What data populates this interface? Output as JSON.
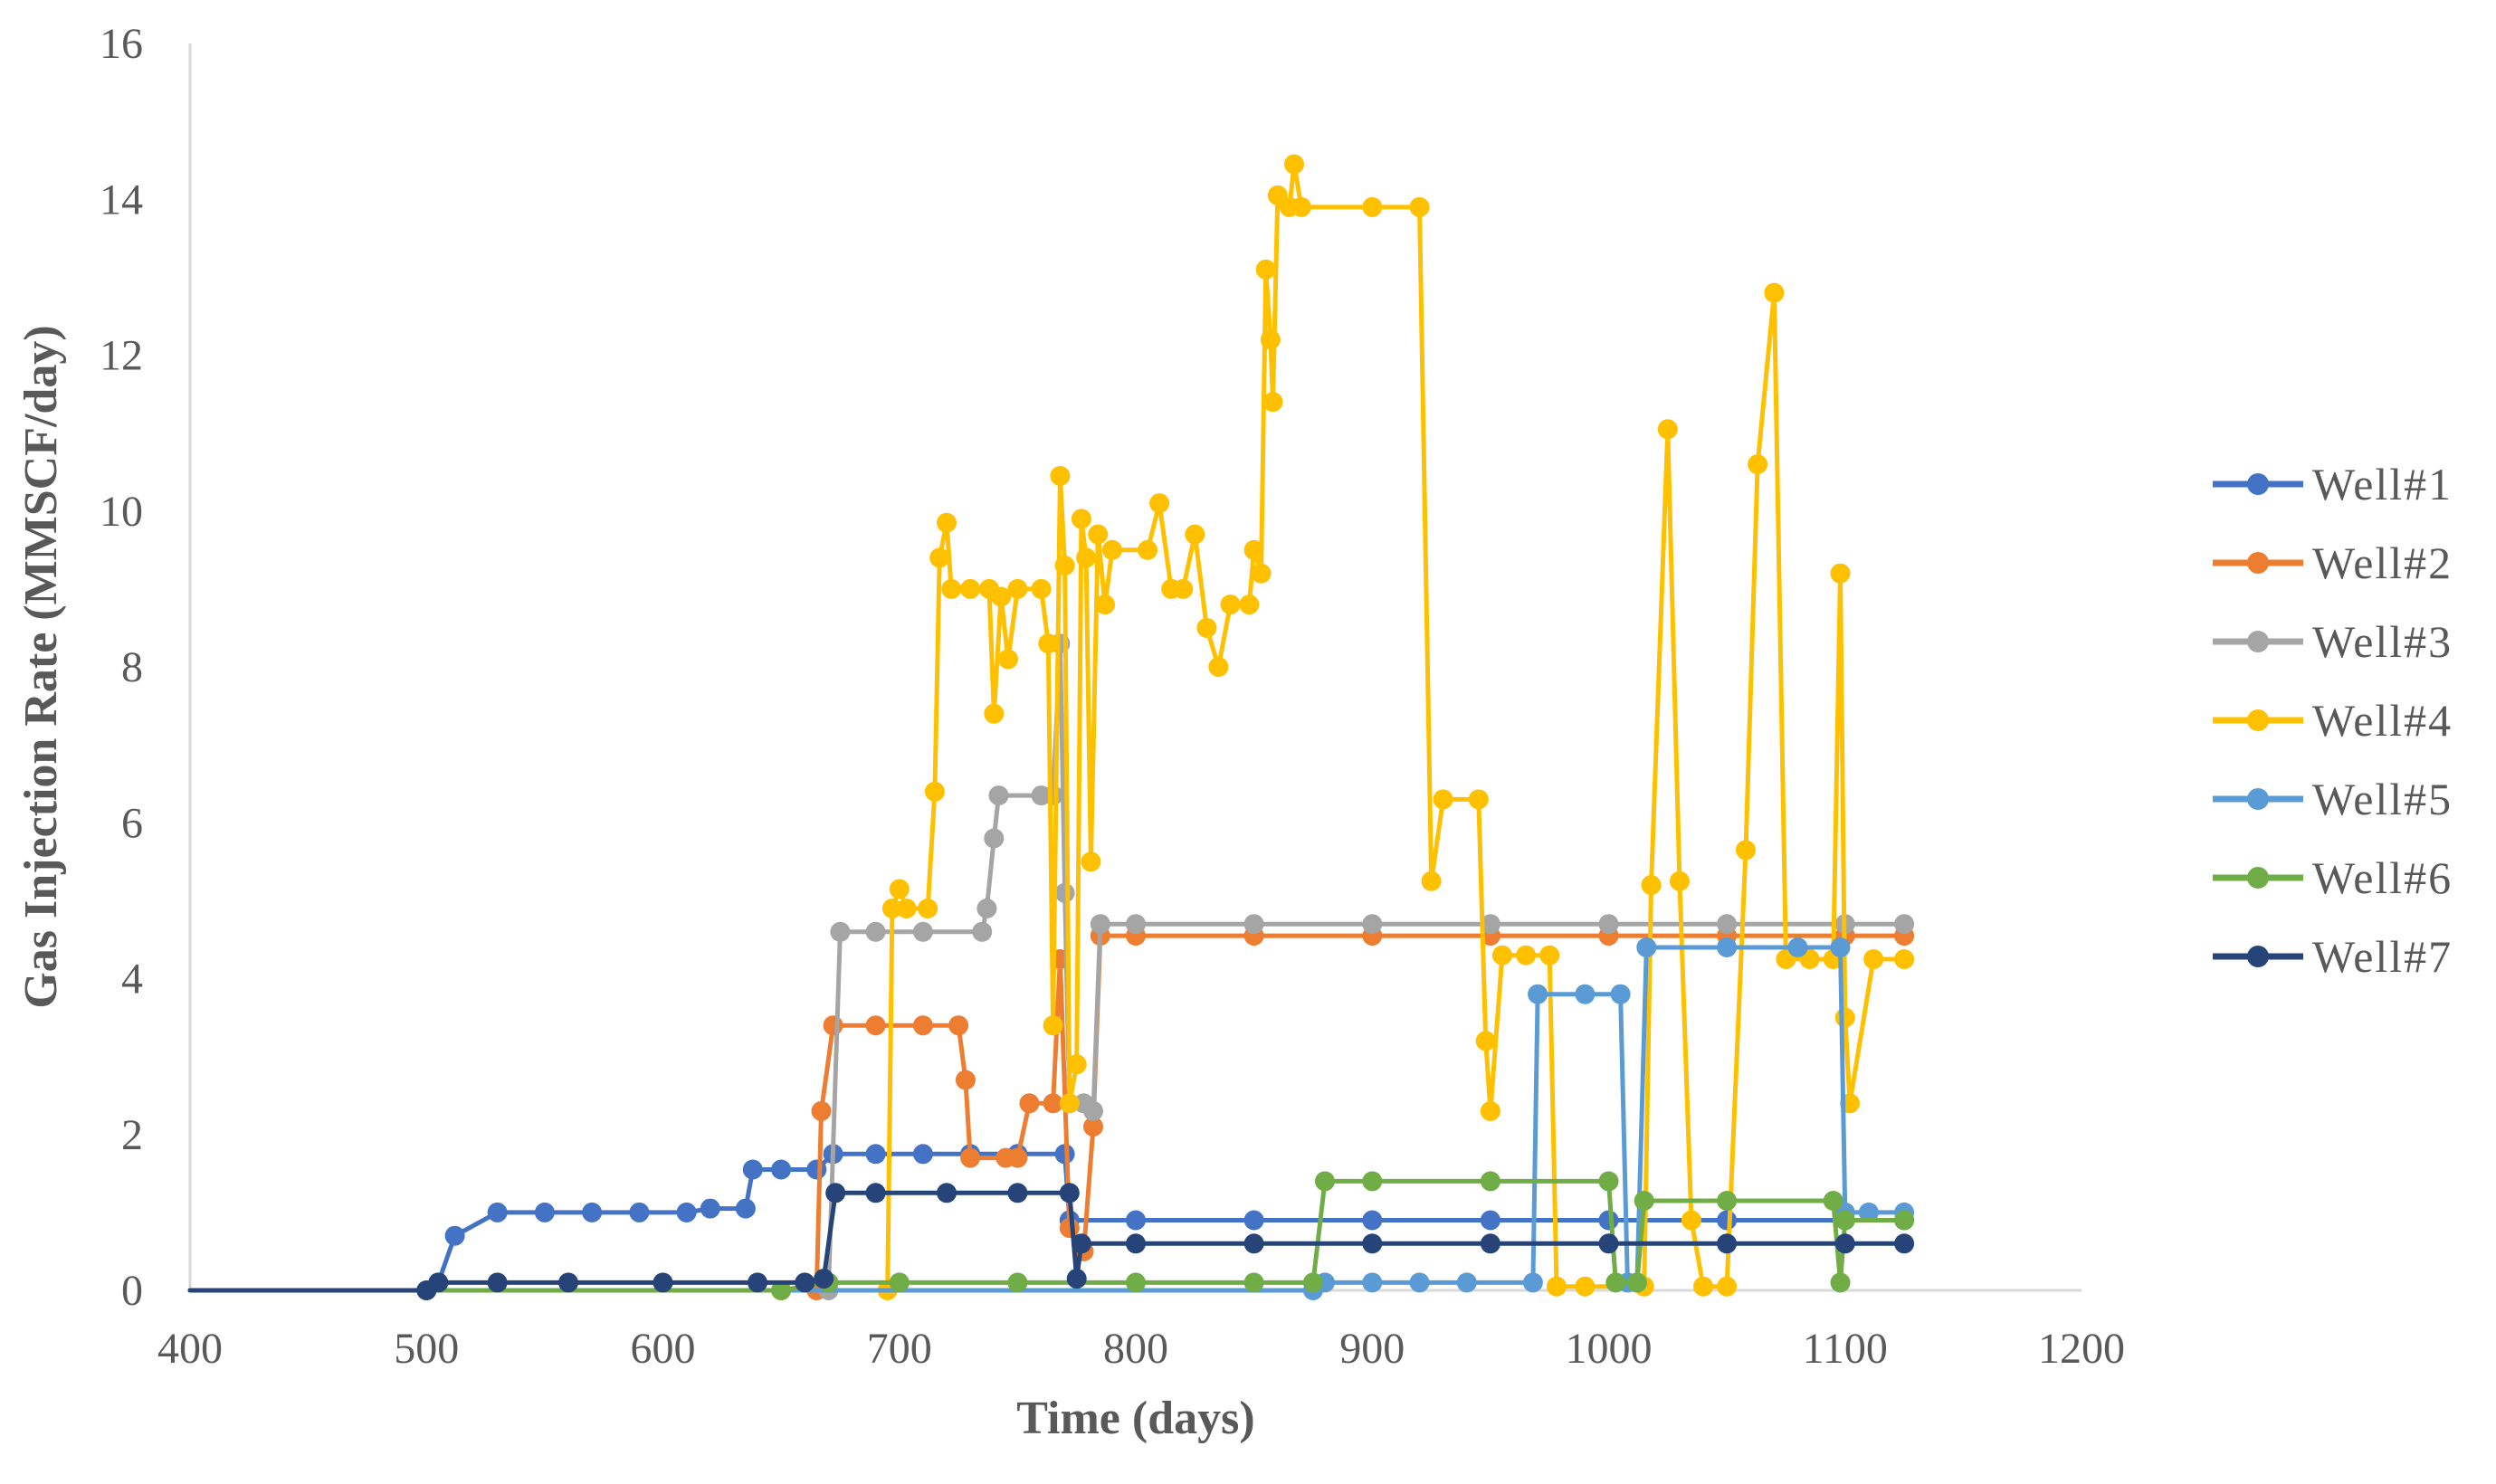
{
  "chart_data": {
    "type": "line",
    "title": "",
    "xlabel": "Time (days)",
    "ylabel": "Gas Injection Rate (MMSCF/day)",
    "xlim": [
      400,
      1200
    ],
    "ylim": [
      0,
      16
    ],
    "xticks": [
      400,
      500,
      600,
      700,
      800,
      900,
      1000,
      1100,
      1200
    ],
    "yticks": [
      0,
      2,
      4,
      6,
      8,
      10,
      12,
      14,
      16
    ],
    "grid": false,
    "legend_position": "right",
    "series": [
      {
        "name": "Well#1",
        "color": "#4472C4",
        "points": [
          [
            400,
            0
          ],
          [
            500,
            0
          ],
          [
            505,
            0.1
          ],
          [
            512,
            0.7
          ],
          [
            530,
            1.0
          ],
          [
            550,
            1.0
          ],
          [
            570,
            1.0
          ],
          [
            590,
            1.0
          ],
          [
            610,
            1.0
          ],
          [
            620,
            1.05
          ],
          [
            635,
            1.05
          ],
          [
            638,
            1.55
          ],
          [
            650,
            1.55
          ],
          [
            665,
            1.55
          ],
          [
            672,
            1.75
          ],
          [
            690,
            1.75
          ],
          [
            710,
            1.75
          ],
          [
            730,
            1.75
          ],
          [
            750,
            1.75
          ],
          [
            770,
            1.75
          ],
          [
            772,
            0.9
          ],
          [
            800,
            0.9
          ],
          [
            850,
            0.9
          ],
          [
            900,
            0.9
          ],
          [
            950,
            0.9
          ],
          [
            1000,
            0.9
          ],
          [
            1050,
            0.9
          ],
          [
            1100,
            0.9
          ],
          [
            1125,
            0.9
          ]
        ]
      },
      {
        "name": "Well#2",
        "color": "#ED7D31",
        "points": [
          [
            400,
            0
          ],
          [
            650,
            0
          ],
          [
            665,
            0
          ],
          [
            667,
            2.3
          ],
          [
            672,
            3.4
          ],
          [
            690,
            3.4
          ],
          [
            710,
            3.4
          ],
          [
            725,
            3.4
          ],
          [
            728,
            2.7
          ],
          [
            730,
            1.7
          ],
          [
            745,
            1.7
          ],
          [
            750,
            1.7
          ],
          [
            755,
            2.4
          ],
          [
            765,
            2.4
          ],
          [
            768,
            4.25
          ],
          [
            772,
            0.8
          ],
          [
            778,
            0.5
          ],
          [
            782,
            2.1
          ],
          [
            785,
            4.55
          ],
          [
            800,
            4.55
          ],
          [
            850,
            4.55
          ],
          [
            900,
            4.55
          ],
          [
            950,
            4.55
          ],
          [
            1000,
            4.55
          ],
          [
            1050,
            4.55
          ],
          [
            1100,
            4.55
          ],
          [
            1125,
            4.55
          ]
        ]
      },
      {
        "name": "Well#3",
        "color": "#A5A5A5",
        "points": [
          [
            400,
            0
          ],
          [
            670,
            0
          ],
          [
            675,
            4.6
          ],
          [
            690,
            4.6
          ],
          [
            710,
            4.6
          ],
          [
            735,
            4.6
          ],
          [
            737,
            4.9
          ],
          [
            740,
            5.8
          ],
          [
            742,
            6.35
          ],
          [
            760,
            6.35
          ],
          [
            765,
            6.35
          ],
          [
            768,
            8.3
          ],
          [
            770,
            5.1
          ],
          [
            772,
            2.4
          ],
          [
            778,
            2.4
          ],
          [
            782,
            2.3
          ],
          [
            785,
            4.7
          ],
          [
            800,
            4.7
          ],
          [
            850,
            4.7
          ],
          [
            900,
            4.7
          ],
          [
            950,
            4.7
          ],
          [
            1000,
            4.7
          ],
          [
            1050,
            4.7
          ],
          [
            1100,
            4.7
          ],
          [
            1125,
            4.7
          ]
        ]
      },
      {
        "name": "Well#4",
        "color": "#FFC000",
        "points": [
          [
            400,
            0
          ],
          [
            650,
            0
          ],
          [
            695,
            0
          ],
          [
            697,
            4.9
          ],
          [
            700,
            5.15
          ],
          [
            703,
            4.9
          ],
          [
            712,
            4.9
          ],
          [
            715,
            6.4
          ],
          [
            717,
            9.4
          ],
          [
            720,
            9.85
          ],
          [
            722,
            9.0
          ],
          [
            730,
            9.0
          ],
          [
            738,
            9.0
          ],
          [
            740,
            7.4
          ],
          [
            743,
            8.9
          ],
          [
            746,
            8.1
          ],
          [
            750,
            9.0
          ],
          [
            760,
            9.0
          ],
          [
            763,
            8.3
          ],
          [
            765,
            3.4
          ],
          [
            768,
            10.45
          ],
          [
            770,
            9.3
          ],
          [
            772,
            2.4
          ],
          [
            775,
            2.9
          ],
          [
            777,
            9.9
          ],
          [
            779,
            9.4
          ],
          [
            781,
            5.5
          ],
          [
            784,
            9.7
          ],
          [
            787,
            8.8
          ],
          [
            790,
            9.5
          ],
          [
            805,
            9.5
          ],
          [
            810,
            10.1
          ],
          [
            815,
            9.0
          ],
          [
            820,
            9.0
          ],
          [
            825,
            9.7
          ],
          [
            830,
            8.5
          ],
          [
            835,
            8.0
          ],
          [
            840,
            8.8
          ],
          [
            848,
            8.8
          ],
          [
            850,
            9.5
          ],
          [
            853,
            9.2
          ],
          [
            855,
            13.1
          ],
          [
            857,
            12.2
          ],
          [
            858,
            11.4
          ],
          [
            860,
            14.05
          ],
          [
            865,
            13.9
          ],
          [
            867,
            14.45
          ],
          [
            870,
            13.9
          ],
          [
            900,
            13.9
          ],
          [
            920,
            13.9
          ],
          [
            925,
            5.25
          ],
          [
            930,
            6.3
          ],
          [
            945,
            6.3
          ],
          [
            948,
            3.2
          ],
          [
            950,
            2.3
          ],
          [
            955,
            4.3
          ],
          [
            965,
            4.3
          ],
          [
            975,
            4.3
          ],
          [
            978,
            0.05
          ],
          [
            990,
            0.05
          ],
          [
            1015,
            0.05
          ],
          [
            1018,
            5.2
          ],
          [
            1025,
            11.05
          ],
          [
            1030,
            5.25
          ],
          [
            1035,
            0.9
          ],
          [
            1040,
            0.05
          ],
          [
            1050,
            0.05
          ],
          [
            1058,
            5.65
          ],
          [
            1063,
            10.6
          ],
          [
            1070,
            12.8
          ],
          [
            1075,
            4.25
          ],
          [
            1085,
            4.25
          ],
          [
            1095,
            4.25
          ],
          [
            1098,
            9.2
          ],
          [
            1100,
            3.5
          ],
          [
            1102,
            2.4
          ],
          [
            1112,
            4.25
          ],
          [
            1125,
            4.25
          ]
        ]
      },
      {
        "name": "Well#5",
        "color": "#5B9BD5",
        "points": [
          [
            400,
            0
          ],
          [
            875,
            0
          ],
          [
            880,
            0.1
          ],
          [
            900,
            0.1
          ],
          [
            920,
            0.1
          ],
          [
            940,
            0.1
          ],
          [
            968,
            0.1
          ],
          [
            970,
            3.8
          ],
          [
            990,
            3.8
          ],
          [
            1005,
            3.8
          ],
          [
            1008,
            0.1
          ],
          [
            1012,
            0.1
          ],
          [
            1016,
            4.4
          ],
          [
            1050,
            4.4
          ],
          [
            1080,
            4.4
          ],
          [
            1098,
            4.4
          ],
          [
            1100,
            1.0
          ],
          [
            1110,
            1.0
          ],
          [
            1125,
            1.0
          ]
        ]
      },
      {
        "name": "Well#6",
        "color": "#70AD47",
        "points": [
          [
            400,
            0
          ],
          [
            650,
            0
          ],
          [
            670,
            0.1
          ],
          [
            700,
            0.1
          ],
          [
            750,
            0.1
          ],
          [
            800,
            0.1
          ],
          [
            850,
            0.1
          ],
          [
            875,
            0.1
          ],
          [
            880,
            1.4
          ],
          [
            900,
            1.4
          ],
          [
            950,
            1.4
          ],
          [
            1000,
            1.4
          ],
          [
            1003,
            0.1
          ],
          [
            1012,
            0.1
          ],
          [
            1015,
            1.15
          ],
          [
            1050,
            1.15
          ],
          [
            1095,
            1.15
          ],
          [
            1098,
            0.1
          ],
          [
            1100,
            0.9
          ],
          [
            1125,
            0.9
          ]
        ]
      },
      {
        "name": "Well#7",
        "color": "#264478",
        "points": [
          [
            400,
            0
          ],
          [
            500,
            0
          ],
          [
            505,
            0.1
          ],
          [
            530,
            0.1
          ],
          [
            560,
            0.1
          ],
          [
            600,
            0.1
          ],
          [
            640,
            0.1
          ],
          [
            660,
            0.1
          ],
          [
            668,
            0.15
          ],
          [
            673,
            1.25
          ],
          [
            690,
            1.25
          ],
          [
            720,
            1.25
          ],
          [
            750,
            1.25
          ],
          [
            772,
            1.25
          ],
          [
            775,
            0.15
          ],
          [
            777,
            0.6
          ],
          [
            800,
            0.6
          ],
          [
            850,
            0.6
          ],
          [
            900,
            0.6
          ],
          [
            950,
            0.6
          ],
          [
            1000,
            0.6
          ],
          [
            1050,
            0.6
          ],
          [
            1100,
            0.6
          ],
          [
            1125,
            0.6
          ]
        ]
      }
    ]
  }
}
